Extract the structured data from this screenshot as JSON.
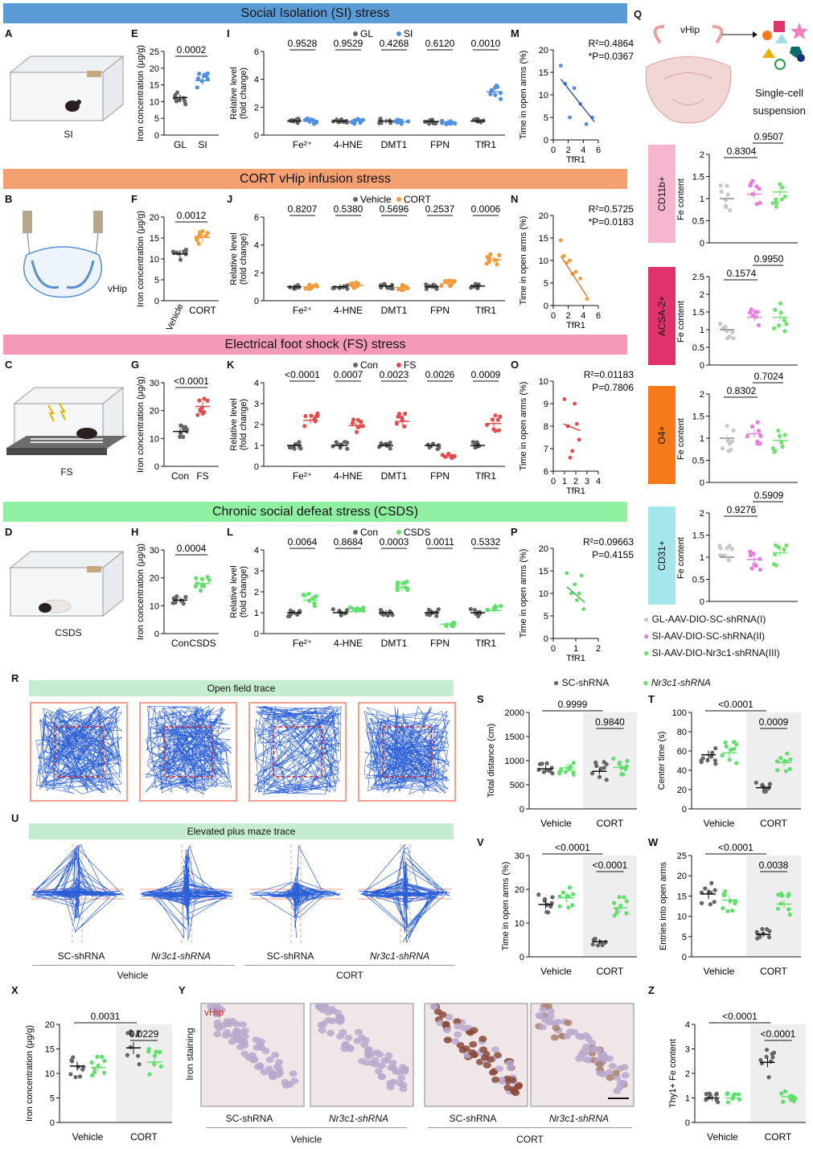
{
  "figure": {
    "banners": {
      "si": "Social Isolation (SI) stress",
      "cort": "CORT vHip infusion stress",
      "fs": "Electrical foot shock (FS) stress",
      "csds": "Chronic social defeat stress (CSDS)"
    },
    "panel_letters": [
      "A",
      "B",
      "C",
      "D",
      "E",
      "F",
      "G",
      "H",
      "I",
      "J",
      "K",
      "L",
      "M",
      "N",
      "O",
      "P",
      "Q",
      "R",
      "S",
      "T",
      "U",
      "V",
      "W",
      "X",
      "Y",
      "Z"
    ],
    "schematics": {
      "A": "SI",
      "B": "vHip",
      "C": "FS",
      "D": "CSDS",
      "Q_region": "vHip",
      "Q_single_cell_1": "Single-cell",
      "Q_single_cell_2": "suspension"
    },
    "colors": {
      "gray": "#666666",
      "si": "#4f8fe0",
      "cort": "#f39a3c",
      "fs": "#e34d4d",
      "csds": "#5fe06b",
      "q1": "#c8c8c8",
      "q2": "#e67ee0",
      "q3": "#70e070"
    },
    "iron_ylabel": "Iron concentration (μg/g)",
    "rel_ylabel_1": "Relative level",
    "rel_ylabel_2": "(fold change)",
    "open_arms_ylabel": "Time in open arms (%)",
    "tfr1": "TfR1",
    "markers": [
      "Fe²⁺",
      "4-HNE",
      "DMT1",
      "FPN",
      "TfR1"
    ],
    "q_groups": [
      "GL-AAV-DIO-SC-shRNA(I)",
      "SI-AAV-DIO-SC-shRNA(II)",
      "SI-AAV-DIO-Nr3c1-shRNA(III)"
    ],
    "q_cells": [
      "CD11b+",
      "ACSA-2+",
      "O4+",
      "CD31+"
    ],
    "q_ylabel": "Fe content",
    "legend_bottom": {
      "a": "SC-shRNA",
      "b": "Nr3c1-shRNA"
    },
    "R_title": "Open field trace",
    "U_title": "Elevated plus maze trace",
    "U_labels": [
      "SC-shRNA",
      "Nr3c1-shRNA",
      "SC-shRNA",
      "Nr3c1-shRNA"
    ],
    "groups2": [
      "Vehicle",
      "CORT"
    ],
    "Y_inset": "vHip",
    "Y_ylabel": "Iron staining",
    "S_ylabel": "Total distance (cm)",
    "T_ylabel": "Center time (s)",
    "W_ylabel": "Entries into open arms",
    "Z_ylabel": "Thy1+ Fe content"
  },
  "chart_data": [
    {
      "id": "E",
      "type": "scatter",
      "categories": [
        "GL",
        "SI"
      ],
      "means": [
        11.2,
        16.3
      ],
      "ylim": [
        0,
        25
      ],
      "ticks": [
        0,
        5,
        10,
        15,
        20,
        25
      ],
      "p": "0.0002"
    },
    {
      "id": "F",
      "type": "scatter",
      "categories": [
        "Vehicle",
        "CORT"
      ],
      "means": [
        11.2,
        15.2
      ],
      "ylim": [
        0,
        20
      ],
      "ticks": [
        0,
        5,
        10,
        15,
        20
      ],
      "p": "0.0012"
    },
    {
      "id": "G",
      "type": "scatter",
      "categories": [
        "Con",
        "FS"
      ],
      "means": [
        12.5,
        21.5
      ],
      "ylim": [
        0,
        30
      ],
      "ticks": [
        0,
        10,
        20,
        30
      ],
      "p": "<0.0001"
    },
    {
      "id": "H",
      "type": "scatter",
      "categories": [
        "Con",
        "CSDS"
      ],
      "means": [
        12.0,
        18.0
      ],
      "ylim": [
        0,
        30
      ],
      "ticks": [
        0,
        10,
        20,
        30
      ],
      "p": "0.0004"
    },
    {
      "id": "I",
      "type": "scatter",
      "legend": [
        "GL",
        "SI"
      ],
      "means": [
        [
          1.0,
          1.0
        ],
        [
          1.0,
          1.0
        ],
        [
          1.0,
          0.95
        ],
        [
          0.97,
          0.95
        ],
        [
          1.0,
          3.1
        ]
      ],
      "ylim": [
        0,
        6
      ],
      "ticks": [
        0,
        2,
        4,
        6
      ],
      "p": [
        "0.9528",
        "0.9529",
        "0.4268",
        "0.6120",
        "0.0010"
      ]
    },
    {
      "id": "J",
      "type": "scatter",
      "legend": [
        "Vehicle",
        "CORT"
      ],
      "means": [
        [
          1.0,
          1.0
        ],
        [
          1.0,
          1.1
        ],
        [
          1.05,
          0.95
        ],
        [
          1.0,
          1.25
        ],
        [
          1.05,
          2.95
        ]
      ],
      "ylim": [
        0,
        6
      ],
      "ticks": [
        0,
        2,
        4,
        6
      ],
      "p": [
        "0.8207",
        "0.5380",
        "0.5696",
        "0.2537",
        "0.0006"
      ]
    },
    {
      "id": "K",
      "type": "scatter",
      "legend": [
        "Con",
        "FS"
      ],
      "means": [
        [
          1.0,
          2.2
        ],
        [
          1.0,
          1.95
        ],
        [
          1.0,
          2.15
        ],
        [
          1.0,
          0.5
        ],
        [
          1.0,
          2.05
        ]
      ],
      "ylim": [
        0,
        4
      ],
      "ticks": [
        0,
        1,
        2,
        3,
        4
      ],
      "p": [
        "<0.0001",
        "0.0007",
        "0.0023",
        "0.0026",
        "0.0009"
      ]
    },
    {
      "id": "L",
      "type": "scatter",
      "legend": [
        "Con",
        "CSDS"
      ],
      "means": [
        [
          1.0,
          1.6
        ],
        [
          1.0,
          1.05
        ],
        [
          1.0,
          2.2
        ],
        [
          1.0,
          0.45
        ],
        [
          1.0,
          1.1
        ]
      ],
      "ylim": [
        0,
        4
      ],
      "ticks": [
        0,
        1,
        2,
        3,
        4
      ],
      "p": [
        "0.0064",
        "0.8684",
        "0.0003",
        "0.0011",
        "0.5332"
      ]
    },
    {
      "id": "M",
      "type": "scatter",
      "xlabel": "TfR1",
      "xlim": [
        0,
        6
      ],
      "xticks": [
        0,
        2,
        4,
        6
      ],
      "ylim": [
        0,
        20
      ],
      "yticks": [
        0,
        5,
        10,
        15,
        20
      ],
      "r2": "R²=0.4864",
      "pval": "*P=0.0367",
      "x": [
        1.0,
        1.6,
        2.2,
        2.8,
        3.6,
        4.4,
        5.2
      ],
      "y": [
        16.5,
        12.5,
        5.0,
        11.5,
        8.0,
        3.5,
        5.0
      ],
      "fit": [
        [
          1.0,
          13.5
        ],
        [
          5.5,
          4.0
        ]
      ]
    },
    {
      "id": "N",
      "type": "scatter",
      "xlabel": "TfR1",
      "xlim": [
        0,
        6
      ],
      "xticks": [
        0,
        2,
        4,
        6
      ],
      "ylim": [
        0,
        20
      ],
      "yticks": [
        0,
        5,
        10,
        15,
        20
      ],
      "r2": "R²=0.5725",
      "pval": "*P=0.0183",
      "x": [
        1.0,
        1.4,
        1.8,
        2.2,
        2.6,
        3.0,
        3.6,
        4.5
      ],
      "y": [
        14.5,
        11.0,
        9.5,
        10.0,
        7.0,
        7.5,
        6.0,
        1.5
      ],
      "fit": [
        [
          1.0,
          11.0
        ],
        [
          4.5,
          2.0
        ]
      ]
    },
    {
      "id": "O",
      "type": "scatter",
      "xlabel": "TfR1",
      "xlim": [
        0,
        4
      ],
      "xticks": [
        0,
        1,
        2,
        3,
        4
      ],
      "ylim": [
        6,
        10
      ],
      "yticks": [
        6,
        7,
        8,
        9,
        10
      ],
      "r2": "R²=0.01183",
      "pval": "P=0.7806",
      "x": [
        1.0,
        1.3,
        1.5,
        1.7,
        1.9,
        2.1,
        2.3
      ],
      "y": [
        9.2,
        8.0,
        6.6,
        6.9,
        9.0,
        8.1,
        7.4
      ],
      "fit": [
        [
          0.9,
          8.1
        ],
        [
          2.4,
          7.8
        ]
      ]
    },
    {
      "id": "P",
      "type": "scatter",
      "xlabel": "TfR1",
      "xlim": [
        0,
        2
      ],
      "xticks": [
        0,
        1,
        2
      ],
      "ylim": [
        0,
        20
      ],
      "yticks": [
        0,
        5,
        10,
        15,
        20
      ],
      "r2": "R²=0.09663",
      "pval": "P=0.4155",
      "x": [
        0.6,
        0.8,
        0.95,
        1.05,
        1.15,
        1.25,
        1.35
      ],
      "y": [
        14.5,
        10.0,
        12.0,
        8.5,
        10.0,
        14.0,
        6.5
      ],
      "fit": [
        [
          0.6,
          11.5
        ],
        [
          1.4,
          8.0
        ]
      ]
    },
    {
      "id": "Q1",
      "type": "scatter",
      "ylim": [
        0,
        2.0
      ],
      "ticks": [
        0,
        0.5,
        1.0,
        1.5,
        2.0
      ],
      "means": [
        1.0,
        1.1,
        1.15
      ],
      "p": [
        "0.8304",
        "0.9507"
      ]
    },
    {
      "id": "Q2",
      "type": "scatter",
      "ylim": [
        0,
        2.5
      ],
      "ticks": [
        0,
        0.5,
        1.0,
        1.5,
        2.0,
        2.5
      ],
      "means": [
        1.0,
        1.35,
        1.35
      ],
      "p": [
        "0.1574",
        "0.9950"
      ]
    },
    {
      "id": "Q3",
      "type": "scatter",
      "ylim": [
        0,
        2.0
      ],
      "ticks": [
        0,
        0.5,
        1.0,
        1.5,
        2.0
      ],
      "means": [
        1.0,
        1.1,
        0.95
      ],
      "p": [
        "0.8302",
        "0.7024"
      ]
    },
    {
      "id": "Q4",
      "type": "scatter",
      "ylim": [
        0,
        2.0
      ],
      "ticks": [
        0,
        0.5,
        1.0,
        1.5,
        2.0
      ],
      "means": [
        1.0,
        0.95,
        1.1
      ],
      "p": [
        "0.9276",
        "0.5909"
      ]
    },
    {
      "id": "S",
      "type": "scatter",
      "ylim": [
        0,
        2000
      ],
      "ticks": [
        0,
        500,
        1000,
        1500,
        2000
      ],
      "means": [
        [
          830,
          850
        ],
        [
          780,
          860
        ]
      ],
      "p_outer": "0.9999",
      "p_inner": "0.9840"
    },
    {
      "id": "T",
      "type": "scatter",
      "ylim": [
        0,
        100
      ],
      "ticks": [
        0,
        20,
        40,
        60,
        80,
        100
      ],
      "means": [
        [
          56,
          58
        ],
        [
          22,
          48
        ]
      ],
      "p_outer": "<0.0001",
      "p_inner": "0.0009"
    },
    {
      "id": "V",
      "type": "scatter",
      "ylim": [
        0,
        30
      ],
      "ticks": [
        0,
        10,
        20,
        30
      ],
      "means": [
        [
          15.5,
          17.5
        ],
        [
          4.5,
          14.5
        ]
      ],
      "p_outer": "<0.0001",
      "p_inner": "<0.0001"
    },
    {
      "id": "W",
      "type": "scatter",
      "ylim": [
        0,
        25
      ],
      "ticks": [
        0,
        5,
        10,
        15,
        20,
        25
      ],
      "means": [
        [
          15.5,
          14.0
        ],
        [
          5.5,
          13.0
        ]
      ],
      "p_outer": "<0.0001",
      "p_inner": "0.0038"
    },
    {
      "id": "X",
      "type": "scatter",
      "ylim": [
        0,
        20
      ],
      "ticks": [
        0,
        5,
        10,
        15,
        20
      ],
      "means": [
        [
          11.5,
          11.2
        ],
        [
          15.2,
          12.3
        ]
      ],
      "p_outer": "0.0031",
      "p_inner": "0.0229"
    },
    {
      "id": "Z",
      "type": "scatter",
      "ylim": [
        0,
        4
      ],
      "ticks": [
        0,
        1,
        2,
        3,
        4
      ],
      "means": [
        [
          1.0,
          1.0
        ],
        [
          2.45,
          1.05
        ]
      ],
      "p_outer": "<0.0001",
      "p_inner": "<0.0001"
    }
  ]
}
